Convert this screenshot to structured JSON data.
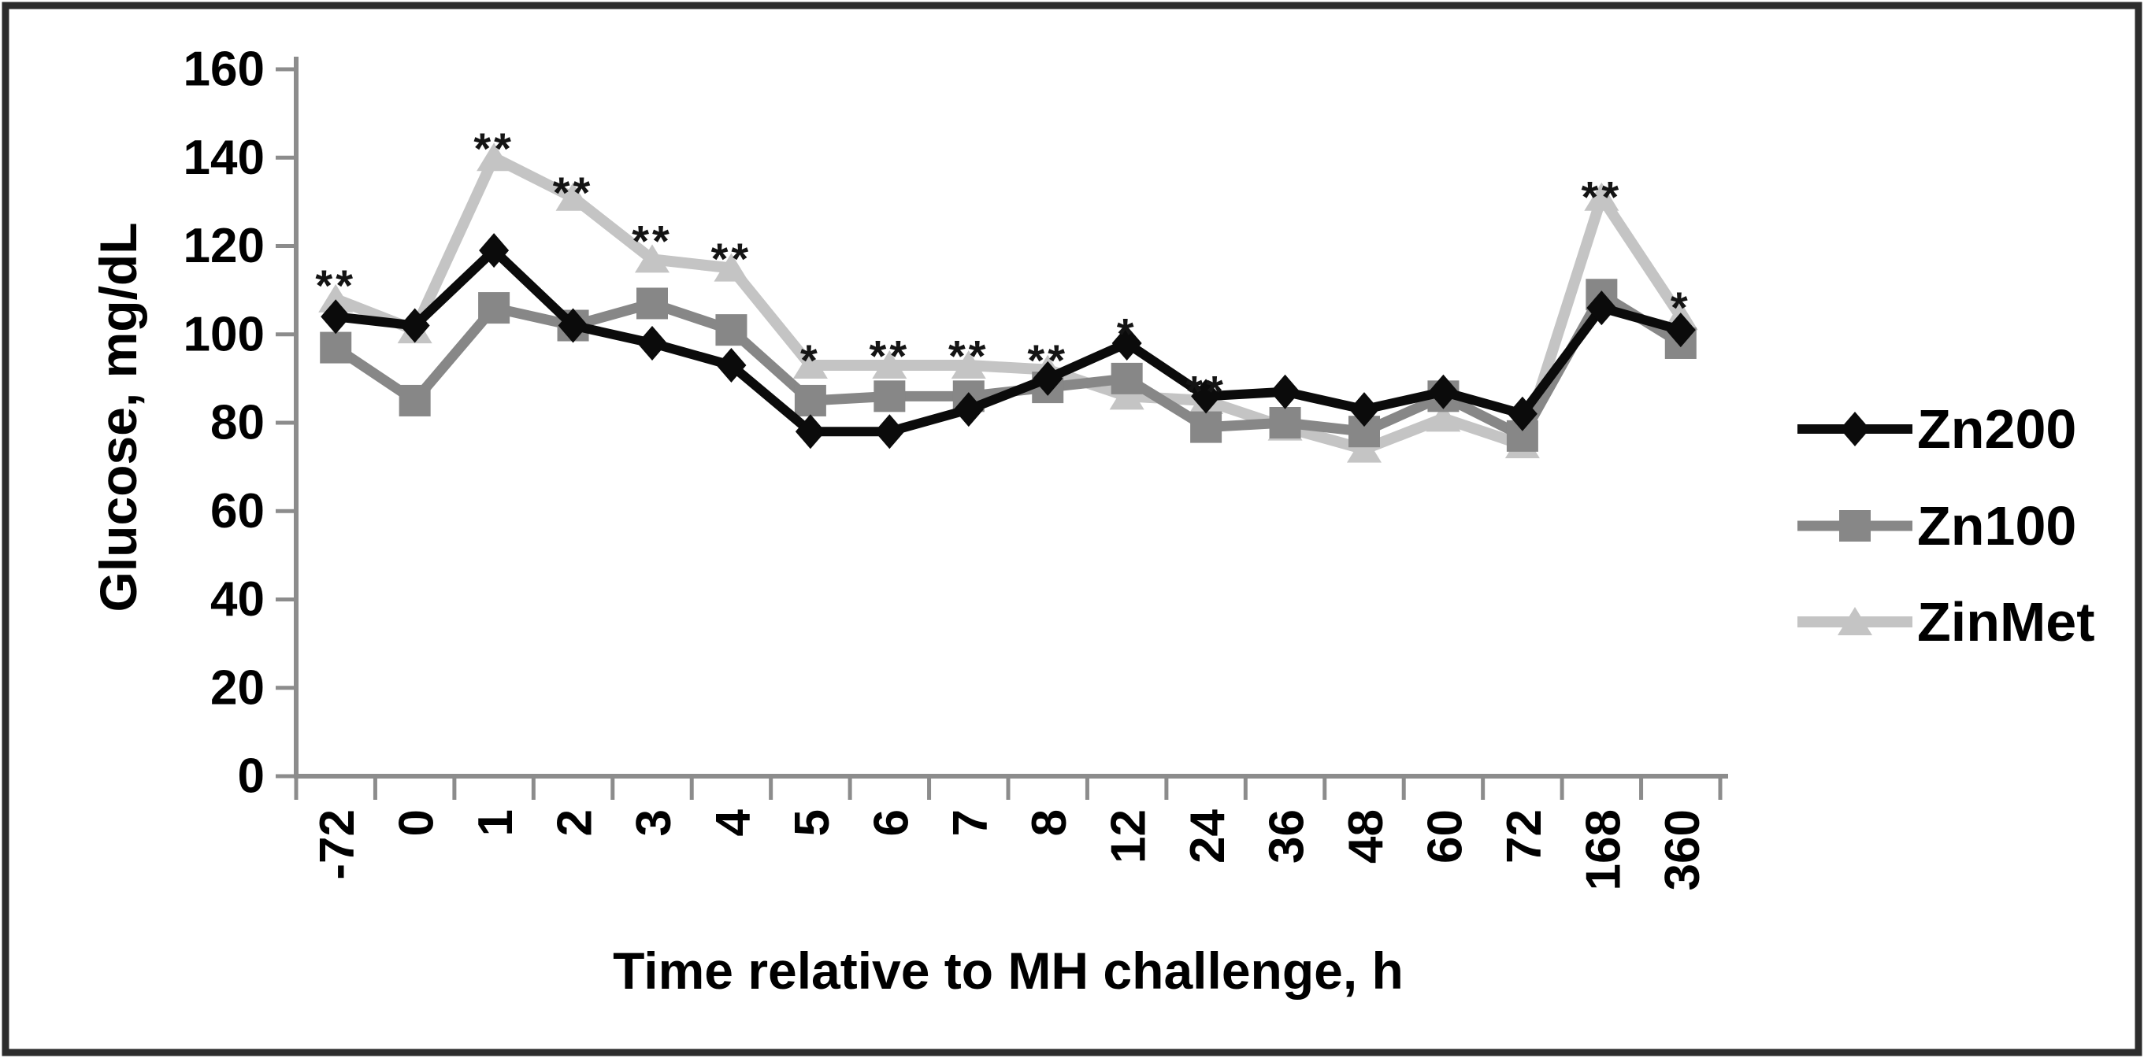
{
  "figure": {
    "border_color": "#2d2d2d",
    "background": "#ffffff",
    "axis_color": "#8c8c8c"
  },
  "chart_data": {
    "type": "line",
    "title": "",
    "xlabel": "Time relative to MH challenge, h",
    "ylabel": "Glucose, mg/dL",
    "categories": [
      "-72",
      "0",
      "1",
      "2",
      "3",
      "4",
      "5",
      "6",
      "7",
      "8",
      "12",
      "24",
      "36",
      "48",
      "60",
      "72",
      "168",
      "360"
    ],
    "ylim": [
      0,
      160
    ],
    "yticks": [
      0,
      20,
      40,
      60,
      80,
      100,
      120,
      140,
      160
    ],
    "grid": false,
    "legend_position": "center-right",
    "series": [
      {
        "name": "Zn200",
        "marker": "diamond",
        "color": "#0b0b0b",
        "values": [
          104,
          102,
          119,
          102,
          98,
          93,
          78,
          78,
          83,
          90,
          98,
          86,
          87,
          83,
          87,
          82,
          106,
          101
        ]
      },
      {
        "name": "Zn100",
        "marker": "square",
        "color": "#878787",
        "values": [
          97,
          85,
          106,
          102,
          107,
          101,
          85,
          86,
          86,
          88,
          90,
          79,
          80,
          78,
          86,
          77,
          109,
          98
        ]
      },
      {
        "name": "ZinMet",
        "marker": "triangle",
        "color": "#c4c4c4",
        "values": [
          108,
          101,
          140,
          131,
          117,
          115,
          93,
          93,
          93,
          92,
          86,
          85,
          79,
          74,
          81,
          75,
          131,
          104
        ]
      }
    ],
    "annotations": [
      {
        "category": "-72",
        "text": "**",
        "value": 113
      },
      {
        "category": "1",
        "text": "**",
        "value": 144
      },
      {
        "category": "2",
        "text": "**",
        "value": 134
      },
      {
        "category": "3",
        "text": "**",
        "value": 123
      },
      {
        "category": "4",
        "text": "**",
        "value": 119
      },
      {
        "category": "5",
        "text": "*",
        "value": 96
      },
      {
        "category": "6",
        "text": "**",
        "value": 97
      },
      {
        "category": "7",
        "text": "**",
        "value": 97
      },
      {
        "category": "8",
        "text": "**",
        "value": 96
      },
      {
        "category": "12",
        "text": "*",
        "value": 102
      },
      {
        "category": "24",
        "text": "**",
        "value": 89
      },
      {
        "category": "168",
        "text": "**",
        "value": 133
      },
      {
        "category": "360",
        "text": "*",
        "value": 108
      }
    ]
  }
}
